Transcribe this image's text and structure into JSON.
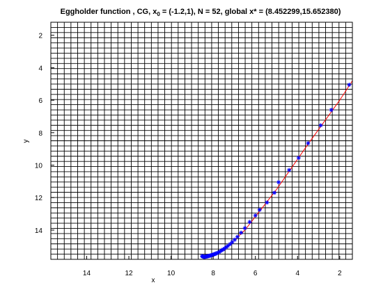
{
  "chart_data": {
    "type": "line",
    "title": {
      "main": "Eggholder function , CG, x",
      "sub": "0",
      "rest": " = (-1.2,1), N = 52, global x* = (8.452299,15.652380)"
    },
    "xlabel": "x",
    "ylabel": "y",
    "xlim": [
      15.7,
      1.4
    ],
    "ylim": [
      15.8,
      1.2
    ],
    "x_reversed": true,
    "y_reversed": true,
    "grid": true,
    "grid_x_count": 45,
    "grid_y_count": 46,
    "xticks": [
      14,
      12,
      10,
      8,
      6,
      4,
      2
    ],
    "yticks": [
      2,
      4,
      6,
      8,
      10,
      12,
      14
    ],
    "series": [
      {
        "type": "line",
        "color": "#ff0000",
        "points": [
          [
            8.45,
            15.65
          ],
          [
            7.5,
            15.25
          ],
          [
            6.5,
            14.0
          ],
          [
            5.0,
            11.5
          ],
          [
            3.5,
            8.7
          ],
          [
            2.0,
            6.0
          ],
          [
            1.4,
            4.8
          ]
        ]
      },
      {
        "type": "scatter",
        "marker": "asterisk",
        "color": "#0000ff",
        "points": [
          [
            8.53,
            15.6
          ],
          [
            8.5,
            15.62
          ],
          [
            8.47,
            15.63
          ],
          [
            8.45,
            15.65
          ],
          [
            8.42,
            15.64
          ],
          [
            8.39,
            15.64
          ],
          [
            8.36,
            15.63
          ],
          [
            8.33,
            15.63
          ],
          [
            8.3,
            15.62
          ],
          [
            8.27,
            15.61
          ],
          [
            8.24,
            15.6
          ],
          [
            8.21,
            15.59
          ],
          [
            8.18,
            15.58
          ],
          [
            8.15,
            15.57
          ],
          [
            8.12,
            15.56
          ],
          [
            8.08,
            15.55
          ],
          [
            8.04,
            15.53
          ],
          [
            8.0,
            15.51
          ],
          [
            7.96,
            15.49
          ],
          [
            7.92,
            15.47
          ],
          [
            7.88,
            15.45
          ],
          [
            7.83,
            15.42
          ],
          [
            7.78,
            15.39
          ],
          [
            7.72,
            15.35
          ],
          [
            7.66,
            15.3
          ],
          [
            7.6,
            15.25
          ],
          [
            7.53,
            15.19
          ],
          [
            7.46,
            15.13
          ],
          [
            7.38,
            15.05
          ],
          [
            7.3,
            14.97
          ],
          [
            7.2,
            14.86
          ],
          [
            7.1,
            14.74
          ],
          [
            6.98,
            14.59
          ],
          [
            6.85,
            14.41
          ],
          [
            6.68,
            14.16
          ],
          [
            6.5,
            13.88
          ],
          [
            6.27,
            13.5
          ],
          [
            6.0,
            13.1
          ],
          [
            5.8,
            12.75
          ],
          [
            5.45,
            12.3
          ],
          [
            5.1,
            11.7
          ],
          [
            4.9,
            11.05
          ],
          [
            4.4,
            10.3
          ],
          [
            3.95,
            9.55
          ],
          [
            3.5,
            8.65
          ],
          [
            2.9,
            7.55
          ],
          [
            2.4,
            6.6
          ],
          [
            1.55,
            5.05
          ]
        ]
      }
    ]
  }
}
